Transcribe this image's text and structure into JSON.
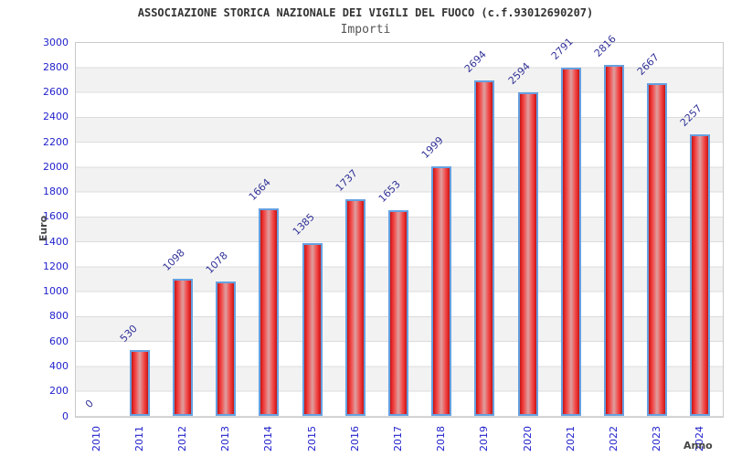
{
  "chart_data": {
    "type": "bar",
    "title": "ASSOCIAZIONE STORICA NAZIONALE DEI VIGILI DEL FUOCO (c.f.93012690207)",
    "subtitle": "Importi",
    "xlabel": "Anno",
    "ylabel": "Euro",
    "categories": [
      "2010",
      "2011",
      "2012",
      "2013",
      "2014",
      "2015",
      "2016",
      "2017",
      "2018",
      "2019",
      "2020",
      "2021",
      "2022",
      "2023",
      "2024"
    ],
    "values": [
      0,
      530,
      1098,
      1078,
      1664,
      1385,
      1737,
      1653,
      1999,
      2694,
      2594,
      2791,
      2816,
      2667,
      2257
    ],
    "value_labels": [
      "0",
      "530",
      "1098",
      "1078",
      "1664",
      "1385",
      "1737",
      "1653",
      "1999",
      "2694",
      "2594",
      "2791",
      "2816",
      "2667",
      "2257"
    ],
    "ylim": [
      0,
      3000
    ],
    "ytick_step": 200,
    "grid": "horizontal gridlines with alternating row bands",
    "legend": "none",
    "colors": {
      "bar_fill_edge": "#c01616",
      "bar_fill_center": "#dda0a0",
      "bar_border": "#66a0e0",
      "tick_label": "#2222cc",
      "value_label": "#333399",
      "axis_title": "#444444",
      "band": "#f2f2f2",
      "gridline": "#dcdcdc"
    }
  }
}
